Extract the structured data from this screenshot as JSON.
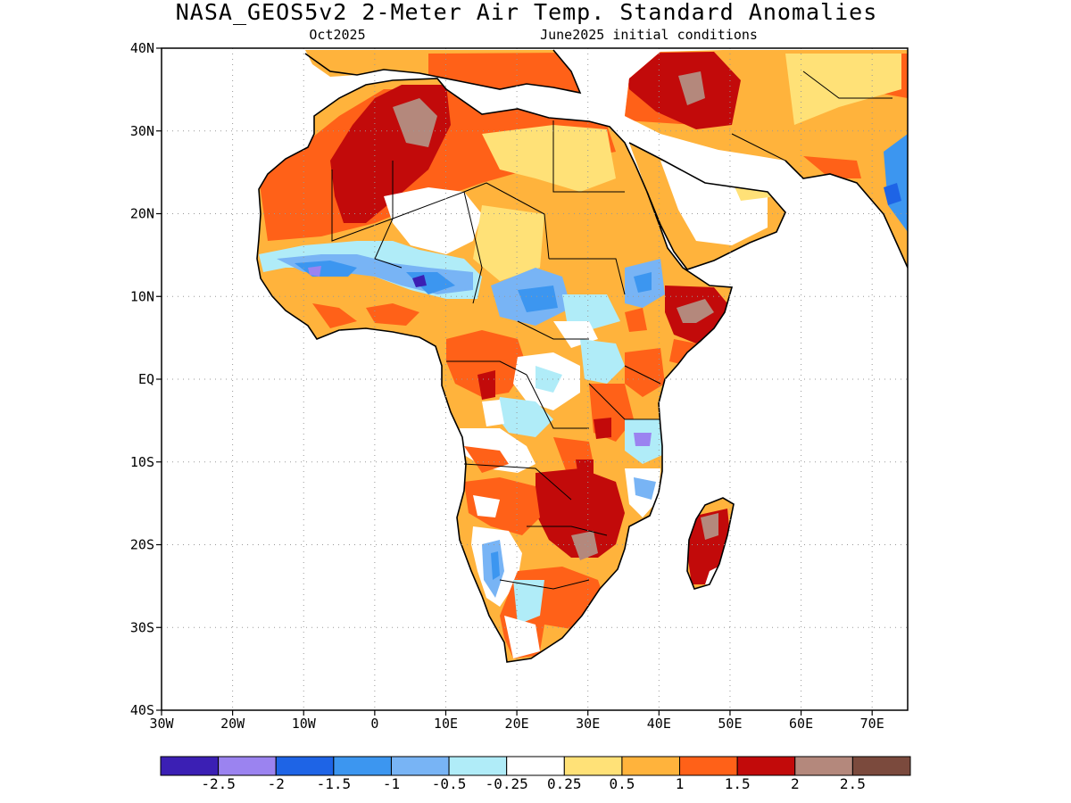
{
  "title": "NASA_GEOS5v2 2-Meter Air Temp. Standard Anomalies",
  "subtitle_left": "Oct2025",
  "subtitle_right": "June2025 initial conditions",
  "lat_ticks": [
    {
      "value": 40,
      "label": "40N"
    },
    {
      "value": 30,
      "label": "30N"
    },
    {
      "value": 20,
      "label": "20N"
    },
    {
      "value": 10,
      "label": "10N"
    },
    {
      "value": 0,
      "label": "EQ"
    },
    {
      "value": -10,
      "label": "10S"
    },
    {
      "value": -20,
      "label": "20S"
    },
    {
      "value": -30,
      "label": "30S"
    },
    {
      "value": -40,
      "label": "40S"
    }
  ],
  "lon_ticks": [
    {
      "value": -30,
      "label": "30W"
    },
    {
      "value": -20,
      "label": "20W"
    },
    {
      "value": -10,
      "label": "10W"
    },
    {
      "value": 0,
      "label": "0"
    },
    {
      "value": 10,
      "label": "10E"
    },
    {
      "value": 20,
      "label": "20E"
    },
    {
      "value": 30,
      "label": "30E"
    },
    {
      "value": 40,
      "label": "40E"
    },
    {
      "value": 50,
      "label": "50E"
    },
    {
      "value": 60,
      "label": "60E"
    },
    {
      "value": 70,
      "label": "70E"
    }
  ],
  "extent": {
    "lon_min": -30,
    "lon_max": 75,
    "lat_min": -40,
    "lat_max": 40
  },
  "colorbar": {
    "colors": [
      "#3b1fb4",
      "#9b83f0",
      "#1e64e6",
      "#3c96f0",
      "#78b4f5",
      "#b0ecf8",
      "#ffffff",
      "#ffe177",
      "#ffb33c",
      "#ff6118",
      "#c20a0a",
      "#b4887c",
      "#7b4a3d"
    ],
    "labels": [
      "-2.5",
      "-2",
      "-1.5",
      "-1",
      "-0.5",
      "-0.25",
      "0.25",
      "0.5",
      "1",
      "1.5",
      "2",
      "2.5"
    ]
  }
}
